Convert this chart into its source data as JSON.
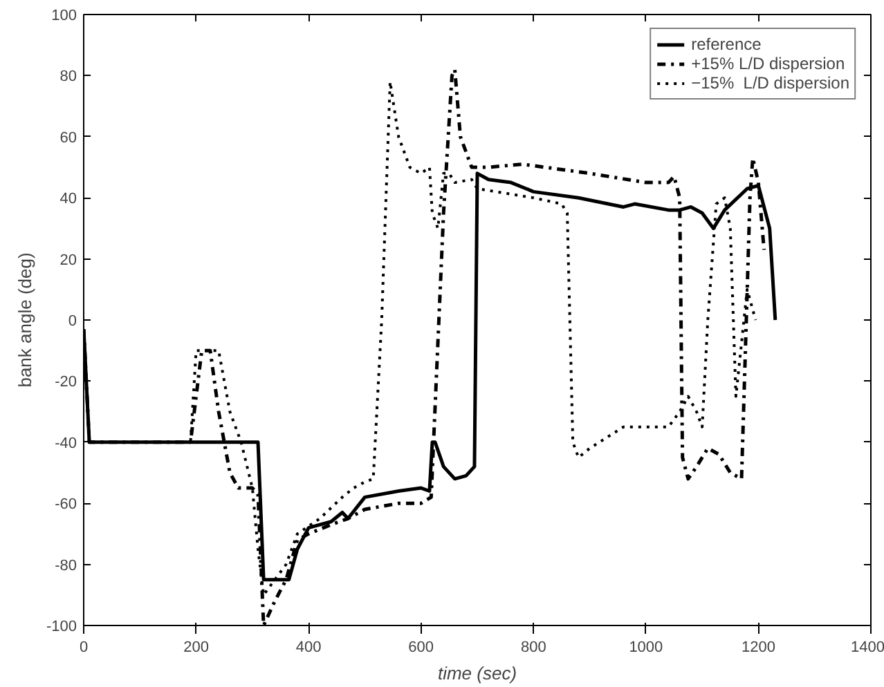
{
  "chart_data": {
    "type": "line",
    "xlabel": "time (sec)",
    "ylabel": "bank angle (deg)",
    "xlim": [
      0,
      1400
    ],
    "xticks": [
      0,
      200,
      400,
      600,
      800,
      1000,
      1200,
      1400
    ],
    "ylim": [
      -100,
      100
    ],
    "yticks": [
      -100,
      -80,
      -60,
      -40,
      -20,
      0,
      20,
      40,
      60,
      80,
      100
    ],
    "grid": false,
    "legend": "top right",
    "marker": "none",
    "series": [
      {
        "name": "reference",
        "color": "#000000",
        "line_style": "solid",
        "x": [
          0,
          10,
          310,
          320,
          365,
          380,
          400,
          440,
          460,
          470,
          500,
          560,
          600,
          615,
          620,
          625,
          640,
          660,
          680,
          695,
          700,
          720,
          760,
          800,
          880,
          960,
          980,
          1040,
          1060,
          1080,
          1100,
          1120,
          1140,
          1180,
          1200,
          1220,
          1230
        ],
        "values": [
          -3,
          -40,
          -40,
          -85,
          -85,
          -75,
          -68,
          -66,
          -63,
          -65,
          -58,
          -56,
          -55,
          -56,
          -40,
          -40,
          -48,
          -52,
          -51,
          -48,
          48,
          46,
          45,
          42,
          40,
          37,
          38,
          36,
          36,
          37,
          35,
          30,
          36,
          43,
          44,
          30,
          0
        ]
      },
      {
        "name": "+15% L/D dispersion",
        "color": "#000000",
        "line_style": "dashdot",
        "x": [
          0,
          10,
          190,
          210,
          225,
          240,
          260,
          275,
          300,
          310,
          320,
          340,
          360,
          380,
          400,
          440,
          470,
          500,
          560,
          600,
          618,
          640,
          655,
          660,
          670,
          690,
          720,
          780,
          900,
          1000,
          1040,
          1050,
          1060,
          1065,
          1075,
          1090,
          1110,
          1130,
          1150,
          1170,
          1185,
          1190,
          1200,
          1210
        ],
        "values": [
          -3,
          -40,
          -40,
          -10,
          -10,
          -30,
          -50,
          -55,
          -55,
          -57,
          -100,
          -92,
          -85,
          -72,
          -70,
          -67,
          -65,
          -62,
          -60,
          -60,
          -58,
          35,
          80,
          82,
          60,
          50,
          50,
          51,
          48,
          45,
          45,
          47,
          40,
          -45,
          -52,
          -48,
          -42,
          -44,
          -50,
          -52,
          40,
          53,
          45,
          23
        ]
      },
      {
        "name": "−15%  L/D dispersion",
        "color": "#000000",
        "line_style": "dotted",
        "x": [
          0,
          10,
          190,
          200,
          240,
          260,
          280,
          300,
          310,
          320,
          340,
          360,
          380,
          420,
          460,
          480,
          500,
          515,
          530,
          545,
          560,
          580,
          600,
          615,
          620,
          630,
          640,
          650,
          660,
          690,
          700,
          800,
          850,
          860,
          870,
          880,
          900,
          960,
          1000,
          1040,
          1060,
          1075,
          1090,
          1100,
          1110,
          1125,
          1140,
          1150,
          1160,
          1180,
          1195
        ],
        "values": [
          -3,
          -40,
          -40,
          -10,
          -10,
          -30,
          -40,
          -55,
          -75,
          -90,
          -85,
          -80,
          -70,
          -65,
          -58,
          -55,
          -53,
          -52,
          0,
          78,
          60,
          50,
          48,
          50,
          35,
          30,
          48,
          48,
          45,
          46,
          43,
          40,
          38,
          35,
          -40,
          -45,
          -42,
          -35,
          -35,
          -35,
          -30,
          -25,
          -30,
          -35,
          0,
          38,
          40,
          30,
          -25,
          10,
          0
        ]
      }
    ]
  }
}
